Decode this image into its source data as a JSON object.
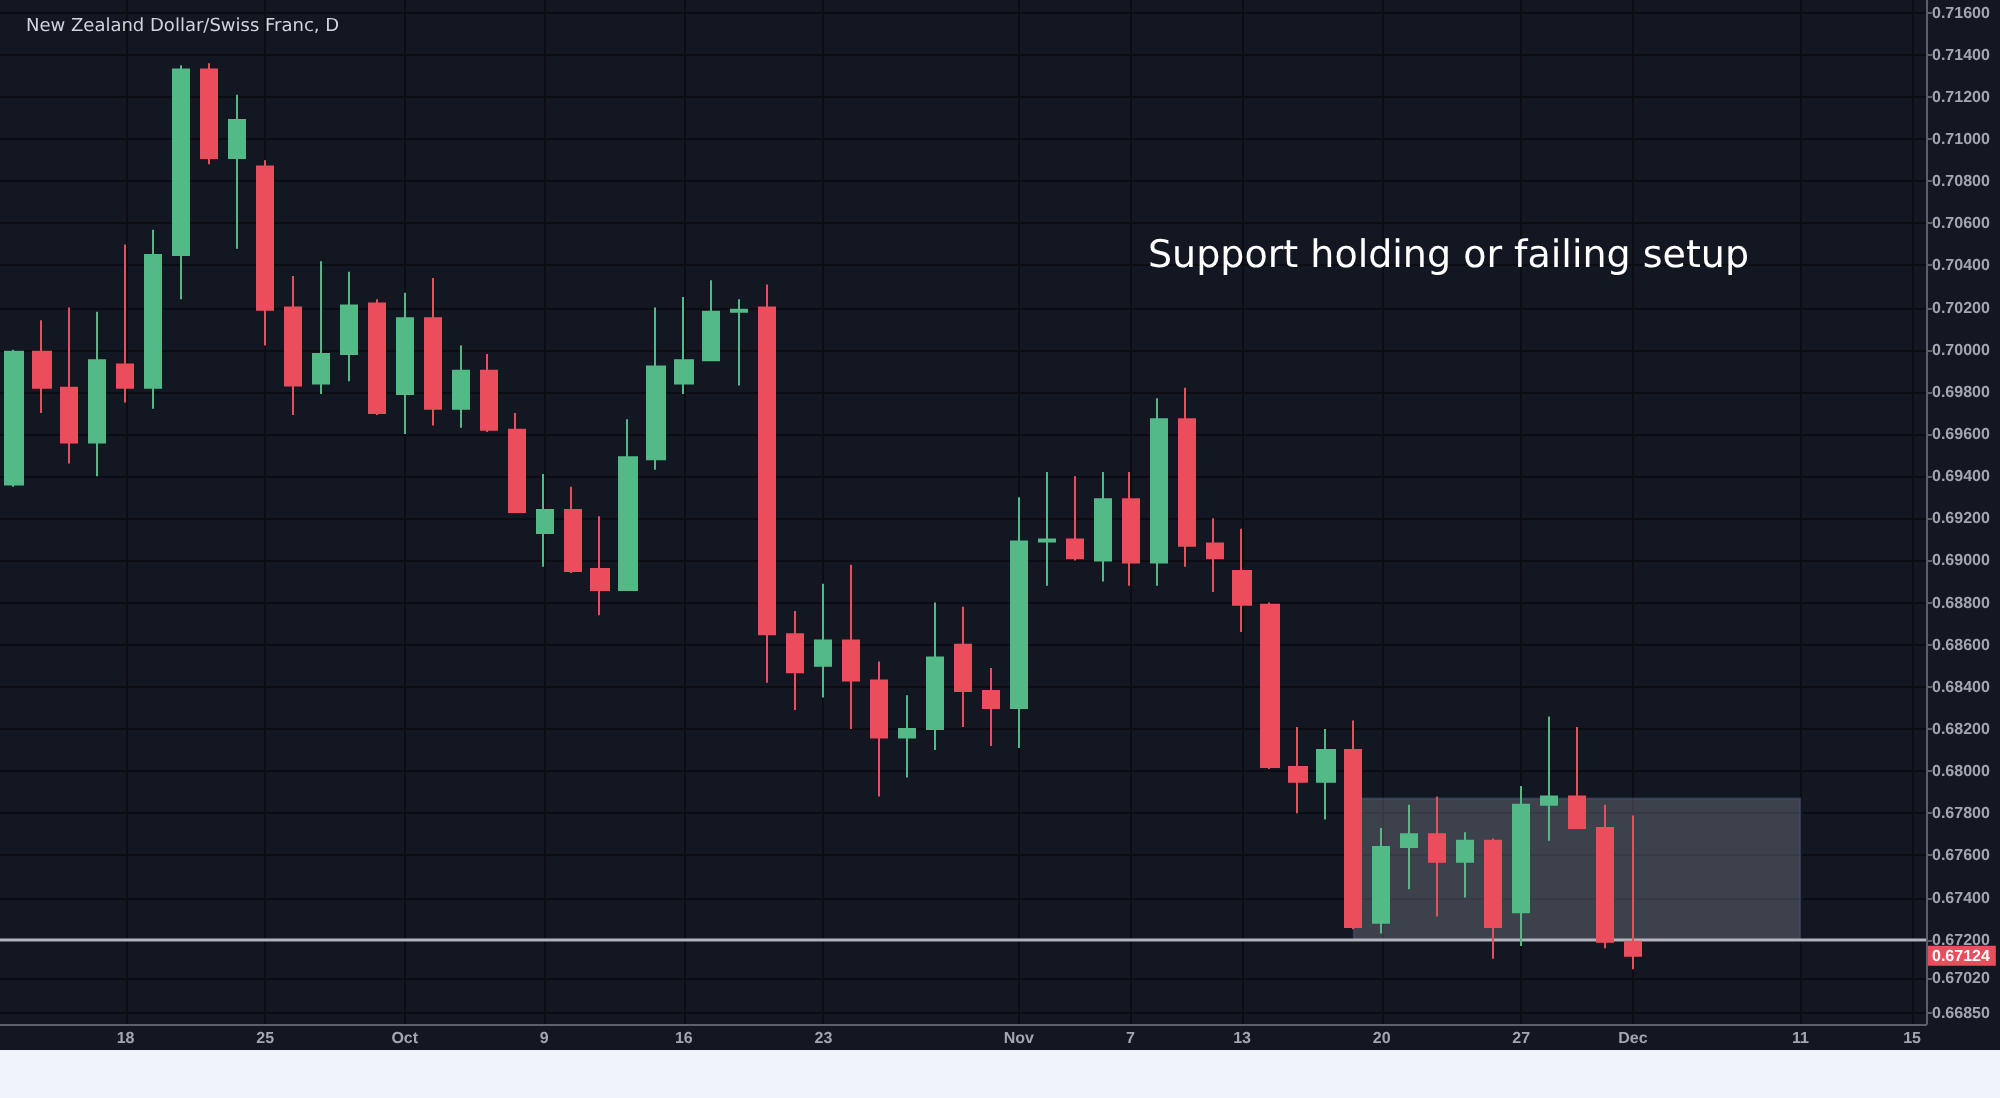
{
  "chart_data": {
    "type": "candlestick",
    "title": "New Zealand Dollar/Swiss Franc, D",
    "annotations": [
      "Support holding or failing setup",
      "0.67124"
    ],
    "categories": [
      null,
      null,
      null,
      null,
      "18",
      null,
      null,
      null,
      null,
      "25",
      null,
      null,
      null,
      null,
      "Oct",
      null,
      null,
      null,
      null,
      "9",
      null,
      null,
      null,
      null,
      "16",
      null,
      null,
      null,
      null,
      "23",
      null,
      null,
      null,
      null,
      null,
      null,
      "Nov",
      null,
      null,
      null,
      "7",
      null,
      null,
      null,
      "13",
      null,
      null,
      null,
      null,
      "20",
      null,
      null,
      null,
      null,
      "27",
      null,
      null,
      null,
      "Dec",
      null,
      null,
      null,
      null,
      null,
      "11",
      null,
      null,
      null,
      "15"
    ],
    "ohlc": [
      [
        0.6936,
        0.7,
        0.6935,
        0.6999
      ],
      [
        0.6999,
        0.7014,
        0.697,
        0.6982
      ],
      [
        0.6982,
        0.702,
        0.6946,
        0.6956
      ],
      [
        0.6956,
        0.7018,
        0.694,
        0.6995
      ],
      [
        0.6993,
        0.705,
        0.6975,
        0.6982
      ],
      [
        0.6982,
        0.7057,
        0.6972,
        0.7045
      ],
      [
        0.7045,
        0.7135,
        0.7024,
        0.7133
      ],
      [
        0.7133,
        0.7136,
        0.7088,
        0.7091
      ],
      [
        0.7091,
        0.7121,
        0.7048,
        0.7109
      ],
      [
        0.7087,
        0.709,
        0.7002,
        0.7019
      ],
      [
        0.702,
        0.7035,
        0.6969,
        0.6983
      ],
      [
        0.6984,
        0.7042,
        0.6979,
        0.6998
      ],
      [
        0.6998,
        0.7037,
        0.6985,
        0.7021
      ],
      [
        0.7022,
        0.7024,
        0.6969,
        0.697
      ],
      [
        0.6979,
        0.7027,
        0.696,
        0.7015
      ],
      [
        0.7015,
        0.7034,
        0.6964,
        0.6972
      ],
      [
        0.6972,
        0.7002,
        0.6963,
        0.699
      ],
      [
        0.699,
        0.6998,
        0.6961,
        0.6962
      ],
      [
        0.6962,
        0.697,
        0.6923,
        0.6923
      ],
      [
        0.6913,
        0.6941,
        0.6897,
        0.6924
      ],
      [
        0.6924,
        0.6935,
        0.6894,
        0.6895
      ],
      [
        0.6896,
        0.6921,
        0.6874,
        0.6886
      ],
      [
        0.6886,
        0.6967,
        0.6886,
        0.6949
      ],
      [
        0.6948,
        0.702,
        0.6943,
        0.6992
      ],
      [
        0.6984,
        0.7025,
        0.6979,
        0.6995
      ],
      [
        0.6995,
        0.7033,
        0.6995,
        0.7018
      ],
      [
        0.7018,
        0.7024,
        0.6983,
        0.7019
      ],
      [
        0.702,
        0.7031,
        0.6842,
        0.6865
      ],
      [
        0.6865,
        0.6876,
        0.6829,
        0.6847
      ],
      [
        0.685,
        0.6889,
        0.6835,
        0.6862
      ],
      [
        0.6862,
        0.6898,
        0.682,
        0.6843
      ],
      [
        0.6843,
        0.6852,
        0.6788,
        0.6816
      ],
      [
        0.6816,
        0.6836,
        0.6797,
        0.682
      ],
      [
        0.682,
        0.688,
        0.681,
        0.6854
      ],
      [
        0.686,
        0.6878,
        0.6821,
        0.6838
      ],
      [
        0.6838,
        0.6849,
        0.6812,
        0.683
      ],
      [
        0.683,
        0.693,
        0.6811,
        0.6909
      ],
      [
        0.6909,
        0.6942,
        0.6888,
        0.691
      ],
      [
        0.691,
        0.694,
        0.69,
        0.6901
      ],
      [
        0.69,
        0.6942,
        0.689,
        0.6929
      ],
      [
        0.6929,
        0.6942,
        0.6888,
        0.6899
      ],
      [
        0.6899,
        0.6977,
        0.6888,
        0.6967
      ],
      [
        0.6967,
        0.6982,
        0.6897,
        0.6907
      ],
      [
        0.6908,
        0.692,
        0.6885,
        0.6901
      ],
      [
        0.6895,
        0.6915,
        0.6866,
        0.6879
      ],
      [
        0.6879,
        0.688,
        0.6801,
        0.6802
      ],
      [
        0.6802,
        0.6821,
        0.678,
        0.6795
      ],
      [
        0.6795,
        0.682,
        0.6777,
        0.681
      ],
      [
        0.681,
        0.6824,
        0.6725,
        0.6726
      ],
      [
        0.6728,
        0.6773,
        0.6723,
        0.6764
      ],
      [
        0.6764,
        0.6784,
        0.6744,
        0.677
      ],
      [
        0.677,
        0.6788,
        0.6731,
        0.6757
      ],
      [
        0.6757,
        0.6771,
        0.674,
        0.6767
      ],
      [
        0.6767,
        0.6768,
        0.6711,
        0.6726
      ],
      [
        0.6733,
        0.6793,
        0.6717,
        0.6784
      ],
      [
        0.6784,
        0.6826,
        0.6767,
        0.6788
      ],
      [
        0.6788,
        0.6821,
        0.6773,
        0.6773
      ],
      [
        0.6773,
        0.6784,
        0.6716,
        0.6719
      ],
      [
        0.6719,
        0.6779,
        0.6706,
        0.67124
      ],
      null,
      null,
      null,
      null,
      null,
      null,
      null,
      null,
      null,
      null
    ],
    "colors": [
      "#53b987",
      "#eb4d5c",
      "#eb4d5c",
      "#53b987",
      "#eb4d5c",
      "#53b987",
      "#53b987",
      "#eb4d5c",
      "#53b987",
      "#eb4d5c",
      "#eb4d5c",
      "#53b987",
      "#53b987",
      "#eb4d5c",
      "#53b987",
      "#eb4d5c",
      "#53b987",
      "#eb4d5c",
      "#eb4d5c",
      "#53b987",
      "#eb4d5c",
      "#eb4d5c",
      "#53b987",
      "#53b987",
      "#53b987",
      "#53b987",
      "#53b987",
      "#eb4d5c",
      "#eb4d5c",
      "#53b987",
      "#eb4d5c",
      "#eb4d5c",
      "#53b987",
      "#53b987",
      "#eb4d5c",
      "#eb4d5c",
      "#53b987",
      "#53b987",
      "#eb4d5c",
      "#53b987",
      "#eb4d5c",
      "#53b987",
      "#eb4d5c",
      "#eb4d5c",
      "#eb4d5c",
      "#eb4d5c",
      "#eb4d5c",
      "#53b987",
      "#eb4d5c",
      "#53b987",
      "#53b987",
      "#eb4d5c",
      "#53b987",
      "#eb4d5c",
      "#53b987",
      "#53b987",
      "#eb4d5c",
      "#eb4d5c",
      "#eb4d5c",
      null,
      null,
      null,
      null,
      null,
      null,
      null,
      null,
      null,
      null
    ],
    "ylim": [
      0.668,
      0.7166
    ],
    "yticks": [
      {
        "value": 0.716,
        "label": "0.71600"
      },
      {
        "value": 0.714,
        "label": "0.71400"
      },
      {
        "value": 0.712,
        "label": "0.71200"
      },
      {
        "value": 0.71,
        "label": "0.71000"
      },
      {
        "value": 0.708,
        "label": "0.70800"
      },
      {
        "value": 0.706,
        "label": "0.70600"
      },
      {
        "value": 0.704,
        "label": "0.70400"
      },
      {
        "value": 0.702,
        "label": "0.70200"
      },
      {
        "value": 0.7,
        "label": "0.70000"
      },
      {
        "value": 0.698,
        "label": "0.69800"
      },
      {
        "value": 0.696,
        "label": "0.69600"
      },
      {
        "value": 0.694,
        "label": "0.69400"
      },
      {
        "value": 0.692,
        "label": "0.69200"
      },
      {
        "value": 0.69,
        "label": "0.69000"
      },
      {
        "value": 0.688,
        "label": "0.68800"
      },
      {
        "value": 0.686,
        "label": "0.68600"
      },
      {
        "value": 0.684,
        "label": "0.68400"
      },
      {
        "value": 0.682,
        "label": "0.68200"
      },
      {
        "value": 0.68,
        "label": "0.68000"
      },
      {
        "value": 0.678,
        "label": "0.67800"
      },
      {
        "value": 0.676,
        "label": "0.67600"
      },
      {
        "value": 0.674,
        "label": "0.67400"
      },
      {
        "value": 0.672,
        "label": "0.67200"
      },
      {
        "value": 0.6702,
        "label": "0.67020"
      },
      {
        "value": 0.6685,
        "label": "0.66850"
      }
    ],
    "ref_lines": [
      {
        "axis": "y",
        "value": 0.672,
        "color": "#b2b5be"
      }
    ],
    "bands": [
      {
        "axis": "y",
        "from": 0.672,
        "to": 0.6787,
        "color": "#787b86"
      }
    ],
    "grid": true
  }
}
